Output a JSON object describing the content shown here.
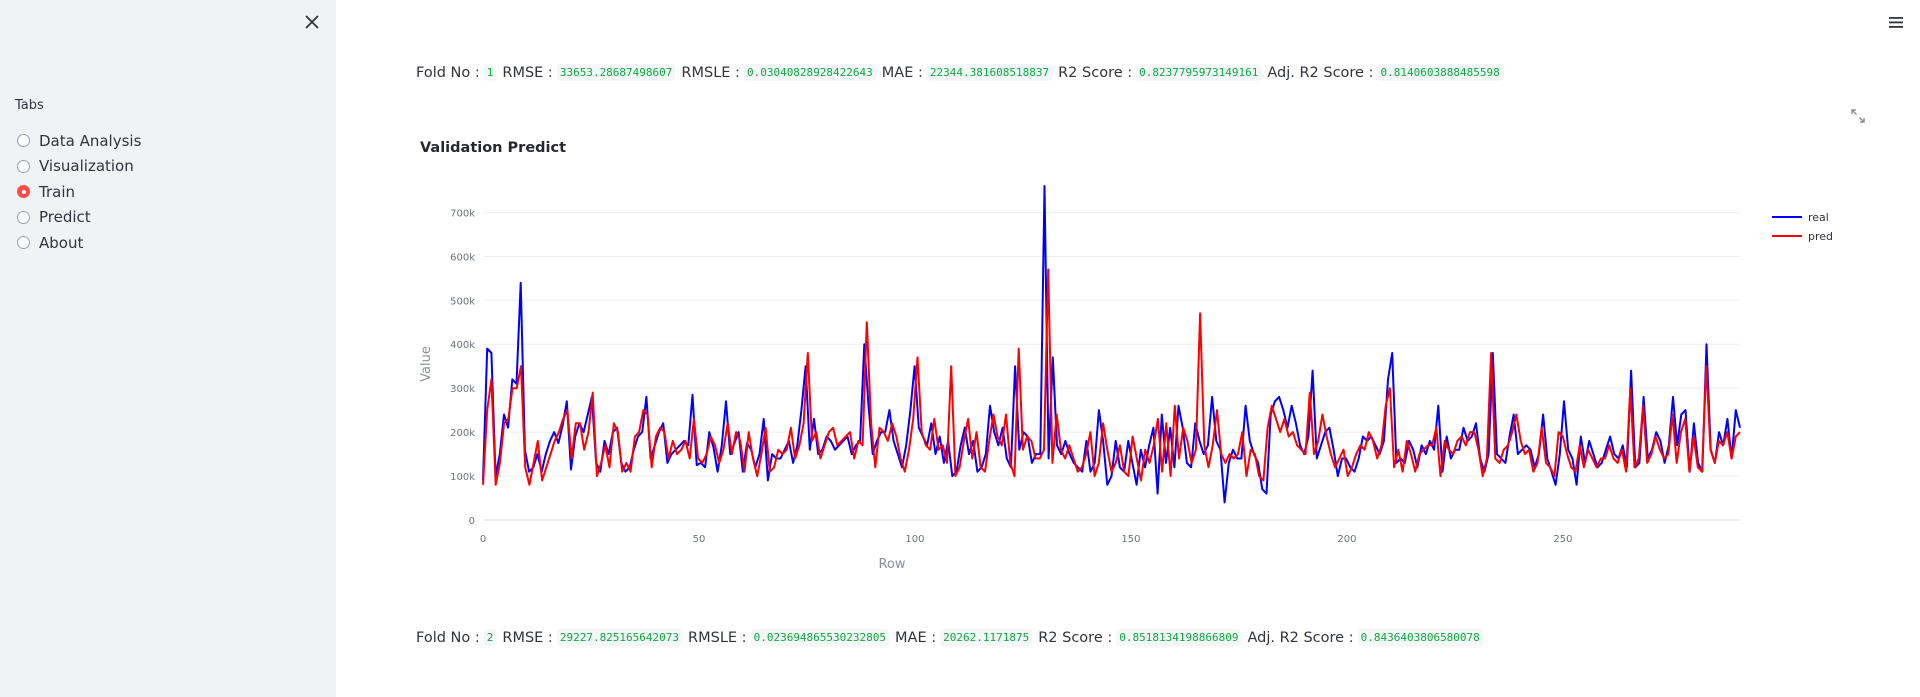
{
  "sidebar": {
    "close_icon": "close-icon",
    "tabs_label": "Tabs",
    "items": [
      {
        "label": "Data Analysis",
        "selected": false
      },
      {
        "label": "Visualization",
        "selected": false
      },
      {
        "label": "Train",
        "selected": true
      },
      {
        "label": "Predict",
        "selected": false
      },
      {
        "label": "About",
        "selected": false
      }
    ],
    "accent_color": "#ff4b4b"
  },
  "header": {
    "menu_icon": "hamburger-menu-icon"
  },
  "labels": {
    "fold_no": "Fold No :",
    "rmse": "RMSE :",
    "rmsle": "RMSLE :",
    "mae": "MAE :",
    "r2": "R2 Score :",
    "adj_r2": "Adj. R2 Score :"
  },
  "folds": [
    {
      "fold": "1",
      "rmse": "33653.28687498607",
      "rmsle": "0.03040828928422643",
      "mae": "22344.381608518837",
      "r2": "0.8237795973149161",
      "adj_r2": "0.8140603888485598"
    },
    {
      "fold": "2",
      "rmse": "29227.825165642073",
      "rmsle": "0.023694865530232805",
      "mae": "20262.1171875",
      "r2": "0.8518134198866809",
      "adj_r2": "0.8436403806580078"
    }
  ],
  "chart_data": {
    "type": "line",
    "title": "Validation Predict",
    "xlabel": "Row",
    "ylabel": "Value",
    "xlim": [
      0,
      291
    ],
    "ylim": [
      0,
      760000
    ],
    "x_ticks": [
      "0",
      "50",
      "100",
      "150",
      "200",
      "250"
    ],
    "y_ticks": [
      "0",
      "100k",
      "200k",
      "300k",
      "400k",
      "500k",
      "600k",
      "700k"
    ],
    "legend_position": "top-right",
    "grid": true,
    "series": [
      {
        "name": "real",
        "color": "#0000ff",
        "values": [
          90000,
          390000,
          380000,
          100000,
          150000,
          240000,
          210000,
          320000,
          310000,
          540000,
          160000,
          110000,
          120000,
          150000,
          110000,
          150000,
          180000,
          200000,
          175000,
          215000,
          270000,
          115000,
          190000,
          220000,
          200000,
          240000,
          280000,
          130000,
          110000,
          180000,
          150000,
          200000,
          210000,
          130000,
          110000,
          120000,
          160000,
          190000,
          200000,
          280000,
          140000,
          170000,
          200000,
          220000,
          130000,
          150000,
          160000,
          170000,
          180000,
          170000,
          285000,
          125000,
          130000,
          120000,
          200000,
          165000,
          110000,
          170000,
          270000,
          150000,
          175000,
          200000,
          110000,
          175000,
          160000,
          120000,
          150000,
          230000,
          90000,
          150000,
          140000,
          140000,
          160000,
          180000,
          130000,
          170000,
          250000,
          350000,
          160000,
          230000,
          150000,
          160000,
          190000,
          180000,
          160000,
          170000,
          180000,
          190000,
          150000,
          170000,
          180000,
          400000,
          260000,
          150000,
          180000,
          200000,
          200000,
          250000,
          180000,
          150000,
          120000,
          170000,
          250000,
          350000,
          210000,
          190000,
          170000,
          220000,
          150000,
          190000,
          130000,
          180000,
          100000,
          110000,
          170000,
          210000,
          150000,
          180000,
          110000,
          120000,
          150000,
          260000,
          200000,
          170000,
          210000,
          140000,
          120000,
          350000,
          160000,
          200000,
          190000,
          130000,
          150000,
          150000,
          760000,
          140000,
          370000,
          170000,
          150000,
          180000,
          150000,
          130000,
          120000,
          110000,
          180000,
          110000,
          130000,
          250000,
          180000,
          80000,
          100000,
          180000,
          120000,
          110000,
          180000,
          130000,
          80000,
          160000,
          120000,
          170000,
          210000,
          60000,
          240000,
          130000,
          210000,
          120000,
          260000,
          210000,
          130000,
          120000,
          220000,
          180000,
          150000,
          170000,
          280000,
          180000,
          160000,
          40000,
          130000,
          160000,
          140000,
          140000,
          260000,
          180000,
          150000,
          130000,
          70000,
          60000,
          240000,
          270000,
          280000,
          250000,
          210000,
          260000,
          220000,
          170000,
          150000,
          190000,
          340000,
          140000,
          170000,
          200000,
          210000,
          160000,
          100000,
          140000,
          140000,
          120000,
          110000,
          140000,
          190000,
          180000,
          190000,
          170000,
          150000,
          180000,
          320000,
          380000,
          130000,
          140000,
          130000,
          180000,
          160000,
          120000,
          170000,
          150000,
          180000,
          160000,
          260000,
          110000,
          190000,
          140000,
          160000,
          160000,
          210000,
          180000,
          190000,
          220000,
          140000,
          110000,
          150000,
          380000,
          150000,
          140000,
          130000,
          190000,
          240000,
          150000,
          160000,
          170000,
          160000,
          120000,
          150000,
          240000,
          140000,
          110000,
          80000,
          150000,
          270000,
          160000,
          140000,
          80000,
          190000,
          130000,
          180000,
          150000,
          120000,
          130000,
          160000,
          190000,
          150000,
          140000,
          170000,
          120000,
          340000,
          120000,
          130000,
          280000,
          140000,
          160000,
          200000,
          180000,
          130000,
          170000,
          280000,
          170000,
          240000,
          250000,
          110000,
          220000,
          130000,
          110000,
          400000,
          160000,
          130000,
          200000,
          170000,
          230000,
          140000,
          250000,
          210000
        ]
      },
      {
        "name": "pred",
        "color": "#ff0000",
        "values": [
          80000,
          250000,
          320000,
          80000,
          130000,
          220000,
          230000,
          300000,
          300000,
          350000,
          120000,
          80000,
          130000,
          180000,
          90000,
          120000,
          150000,
          180000,
          200000,
          230000,
          250000,
          140000,
          220000,
          220000,
          160000,
          200000,
          290000,
          100000,
          130000,
          170000,
          120000,
          220000,
          200000,
          110000,
          130000,
          110000,
          190000,
          200000,
          250000,
          240000,
          120000,
          190000,
          210000,
          200000,
          140000,
          180000,
          150000,
          160000,
          180000,
          140000,
          230000,
          140000,
          130000,
          150000,
          190000,
          170000,
          130000,
          160000,
          220000,
          150000,
          200000,
          180000,
          110000,
          200000,
          140000,
          100000,
          150000,
          210000,
          110000,
          120000,
          160000,
          150000,
          160000,
          210000,
          140000,
          170000,
          220000,
          380000,
          180000,
          200000,
          140000,
          170000,
          200000,
          210000,
          170000,
          180000,
          190000,
          200000,
          140000,
          180000,
          170000,
          450000,
          220000,
          120000,
          210000,
          200000,
          180000,
          220000,
          190000,
          140000,
          110000,
          160000,
          230000,
          370000,
          200000,
          170000,
          160000,
          230000,
          160000,
          170000,
          130000,
          350000,
          100000,
          120000,
          180000,
          230000,
          140000,
          200000,
          120000,
          110000,
          180000,
          240000,
          190000,
          170000,
          240000,
          130000,
          100000,
          390000,
          160000,
          190000,
          180000,
          140000,
          140000,
          160000,
          570000,
          130000,
          240000,
          160000,
          140000,
          170000,
          140000,
          110000,
          120000,
          150000,
          200000,
          100000,
          130000,
          220000,
          160000,
          110000,
          130000,
          170000,
          110000,
          100000,
          190000,
          140000,
          90000,
          160000,
          130000,
          170000,
          230000,
          110000,
          220000,
          100000,
          260000,
          140000,
          210000,
          180000,
          130000,
          160000,
          470000,
          170000,
          120000,
          170000,
          250000,
          150000,
          130000,
          150000,
          140000,
          150000,
          200000,
          100000,
          160000,
          150000,
          100000,
          90000,
          210000,
          260000,
          230000,
          200000,
          230000,
          190000,
          200000,
          170000,
          160000,
          150000,
          290000,
          150000,
          180000,
          240000,
          190000,
          150000,
          120000,
          140000,
          160000,
          100000,
          120000,
          150000,
          170000,
          160000,
          200000,
          180000,
          140000,
          170000,
          260000,
          300000,
          120000,
          160000,
          110000,
          180000,
          150000,
          110000,
          150000,
          160000,
          170000,
          170000,
          210000,
          100000,
          180000,
          160000,
          150000,
          180000,
          190000,
          170000,
          200000,
          200000,
          160000,
          100000,
          140000,
          380000,
          140000,
          130000,
          160000,
          170000,
          200000,
          240000,
          180000,
          150000,
          160000,
          110000,
          130000,
          210000,
          130000,
          120000,
          100000,
          200000,
          190000,
          150000,
          120000,
          110000,
          170000,
          120000,
          160000,
          140000,
          120000,
          140000,
          140000,
          170000,
          140000,
          130000,
          160000,
          110000,
          300000,
          120000,
          140000,
          260000,
          130000,
          150000,
          190000,
          160000,
          140000,
          150000,
          240000,
          130000,
          200000,
          230000,
          110000,
          190000,
          120000,
          110000,
          350000,
          160000,
          130000,
          180000,
          170000,
          200000,
          140000,
          190000,
          200000
        ]
      }
    ]
  }
}
